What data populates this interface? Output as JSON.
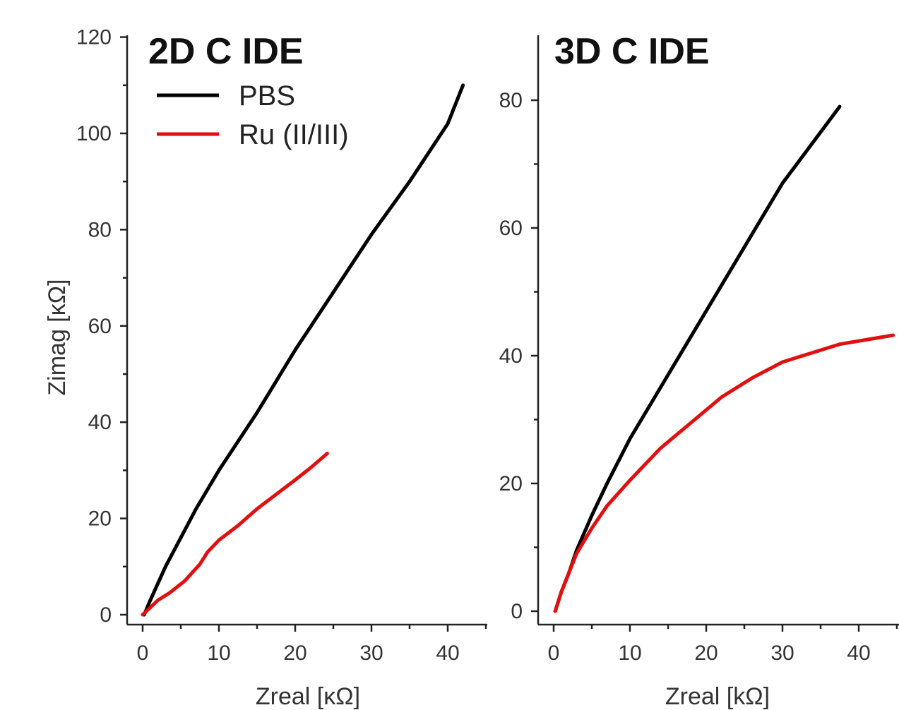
{
  "chart_data": [
    {
      "type": "line",
      "title": "2D C IDE",
      "xlabel": "Zreal [κΩ]",
      "ylabel": "Zimag [κΩ]",
      "xlim": [
        -2,
        45.5
      ],
      "ylim": [
        -2,
        120
      ],
      "xticks": [
        0,
        10,
        20,
        30,
        40
      ],
      "yticks": [
        0,
        20,
        40,
        60,
        80,
        100,
        120
      ],
      "legend": "top-left",
      "series": [
        {
          "name": "PBS",
          "color": "#000000",
          "points": [
            [
              0.2,
              0
            ],
            [
              1,
              3
            ],
            [
              3,
              10
            ],
            [
              5,
              16
            ],
            [
              7,
              22
            ],
            [
              10,
              30
            ],
            [
              15,
              42
            ],
            [
              20,
              55
            ],
            [
              25,
              67
            ],
            [
              30,
              79
            ],
            [
              35,
              90
            ],
            [
              40,
              102
            ],
            [
              42,
              110
            ]
          ]
        },
        {
          "name": "Ru (II/III)",
          "color": "#e01010",
          "points": [
            [
              0,
              0
            ],
            [
              1,
              1.5
            ],
            [
              2,
              3
            ],
            [
              3.5,
              4.5
            ],
            [
              5.5,
              7
            ],
            [
              7.5,
              10.5
            ],
            [
              8.5,
              13
            ],
            [
              10,
              15.5
            ],
            [
              12.5,
              18.5
            ],
            [
              15,
              22
            ],
            [
              17.5,
              25
            ],
            [
              20,
              28
            ],
            [
              22,
              30.5
            ],
            [
              24.2,
              33.5
            ]
          ]
        }
      ]
    },
    {
      "type": "line",
      "title": "3D C IDE",
      "xlabel": "Zreal [kΩ]",
      "ylabel": "",
      "xlim": [
        -2,
        45.5
      ],
      "ylim": [
        -2,
        90
      ],
      "xticks": [
        0,
        10,
        20,
        30,
        40
      ],
      "yticks": [
        0,
        20,
        40,
        60,
        80
      ],
      "series": [
        {
          "name": "PBS",
          "color": "#000000",
          "points": [
            [
              0.2,
              0
            ],
            [
              1,
              3
            ],
            [
              2,
              6
            ],
            [
              3,
              9.5
            ],
            [
              5,
              15
            ],
            [
              7,
              20
            ],
            [
              10,
              27
            ],
            [
              15,
              37
            ],
            [
              20,
              47
            ],
            [
              25,
              57
            ],
            [
              30,
              67
            ],
            [
              35,
              75
            ],
            [
              37.5,
              79
            ]
          ]
        },
        {
          "name": "Ru (II/III)",
          "color": "#e01010",
          "points": [
            [
              0.2,
              0
            ],
            [
              1,
              3
            ],
            [
              2,
              6
            ],
            [
              3,
              9
            ],
            [
              5,
              13
            ],
            [
              7,
              16.5
            ],
            [
              10,
              20.5
            ],
            [
              14,
              25.5
            ],
            [
              18,
              29.5
            ],
            [
              22,
              33.5
            ],
            [
              26,
              36.5
            ],
            [
              30,
              39
            ],
            [
              34,
              40.5
            ],
            [
              37.5,
              41.8
            ],
            [
              41,
              42.5
            ],
            [
              44.5,
              43.2
            ]
          ]
        }
      ]
    }
  ]
}
